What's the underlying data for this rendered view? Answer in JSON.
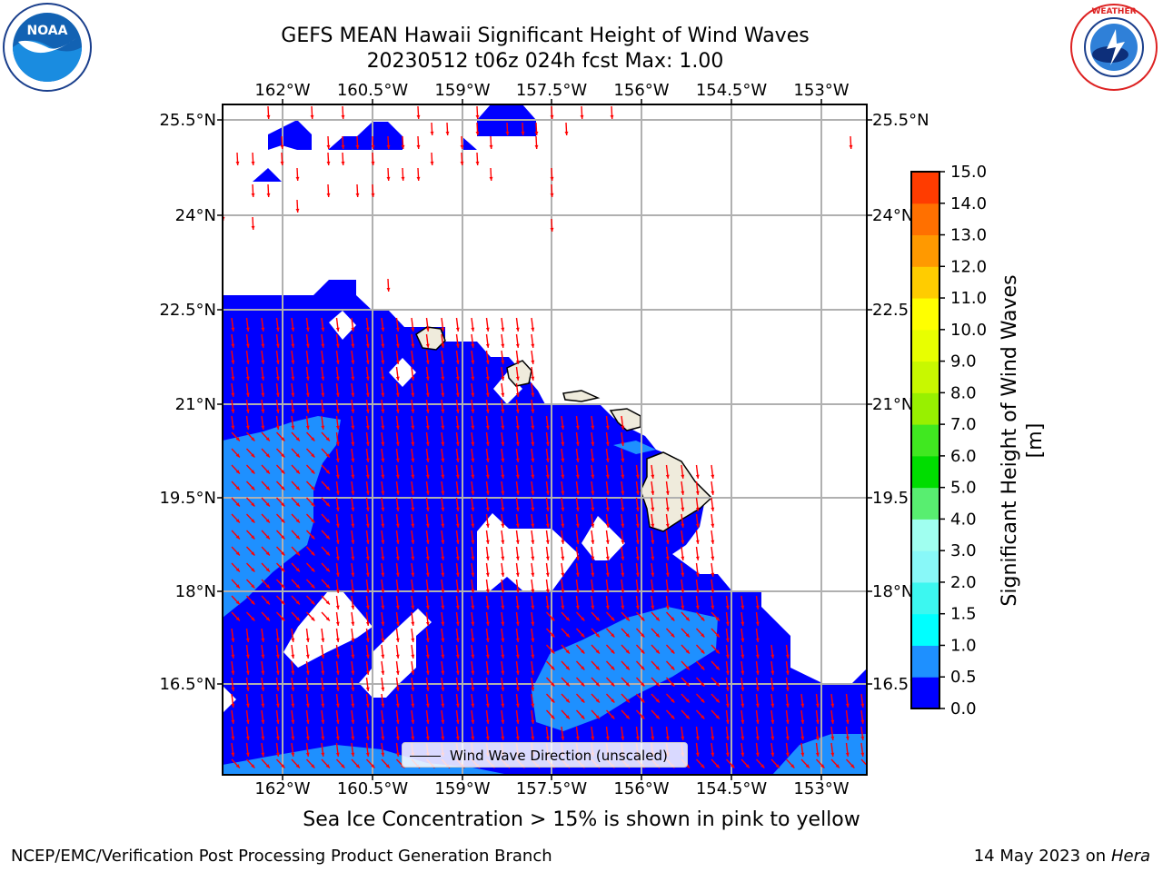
{
  "title_line1": "GEFS MEAN Hawaii Significant Height of Wind Waves",
  "title_line2": "20230512 t06z 024h fcst   Max: 1.00",
  "logos": {
    "left": "NOAA",
    "right": "NATIONAL WEATHER SERVICE"
  },
  "map": {
    "lon_labels": [
      "162°W",
      "160.5°W",
      "159°W",
      "157.5°W",
      "156°W",
      "154.5°W",
      "153°W"
    ],
    "lat_labels": [
      "25.5°N",
      "24°N",
      "22.5°N",
      "21°N",
      "19.5°N",
      "18°N",
      "16.5°N"
    ],
    "lon_range": [
      -163,
      -152.3
    ],
    "lat_range": [
      15.2,
      25.75
    ],
    "ocean_color": "#0000ff",
    "highlight_color": "#1e90ff",
    "arrow_color": "#ff0000",
    "land_color": "#efebdc",
    "grid": true
  },
  "legend": {
    "label": "Wind Wave Direction (unscaled)"
  },
  "colorbar": {
    "label": "Significant Height of Wind Waves [m]",
    "ticks": [
      "0.0",
      "0.5",
      "1.0",
      "1.5",
      "2.0",
      "3.0",
      "4.0",
      "5.0",
      "6.0",
      "7.0",
      "8.0",
      "9.0",
      "10.0",
      "11.0",
      "12.0",
      "13.0",
      "14.0",
      "15.0"
    ],
    "colors": [
      "#0000ff",
      "#1e90ff",
      "#00ffff",
      "#3cf7f0",
      "#88f8f8",
      "#a0fff0",
      "#58ee70",
      "#00dd00",
      "#40e820",
      "#98f000",
      "#c8f800",
      "#e8ff00",
      "#ffff00",
      "#ffcc00",
      "#ff9900",
      "#ff7000",
      "#ff3c00",
      "#ff0000"
    ]
  },
  "subtitle": "Sea Ice Concentration > 15% is shown in pink to yellow",
  "credit": "NCEP/EMC/Verification Post Processing Product Generation Branch",
  "date_text": "14 May 2023 on",
  "date_host": "Hera"
}
